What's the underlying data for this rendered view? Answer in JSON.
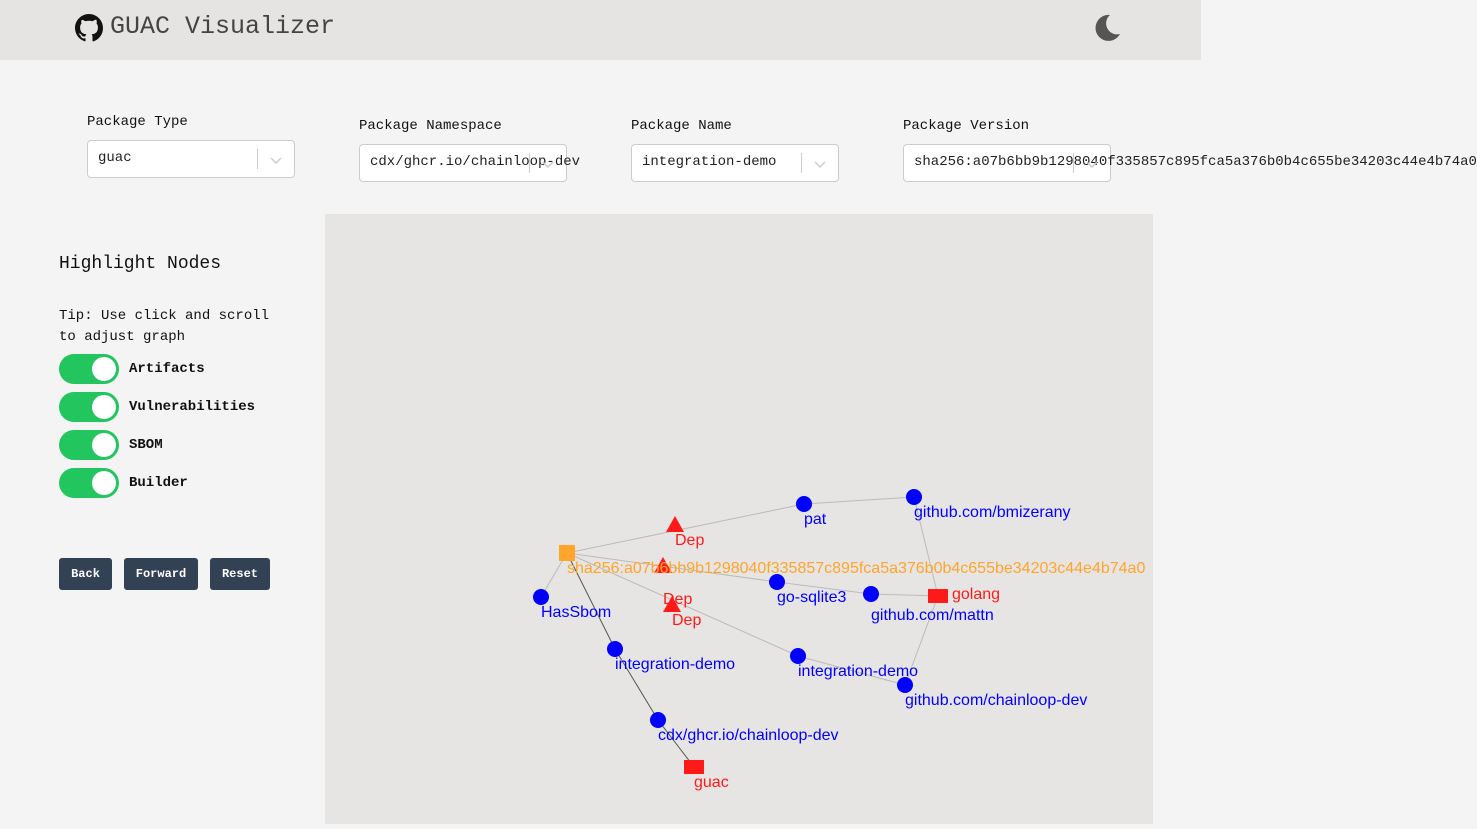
{
  "header": {
    "title": "GUAC Visualizer",
    "logo_icon": "github-icon",
    "theme_icon": "moon-icon"
  },
  "filters": [
    {
      "label": "Package Type",
      "value": "guac"
    },
    {
      "label": "Package Namespace",
      "value": "cdx/ghcr.io/chainloop-dev"
    },
    {
      "label": "Package Name",
      "value": "integration-demo"
    },
    {
      "label": "Package Version",
      "value": "sha256:a07b6bb9b1298040f335857c895fca5a376b0b4c655be34203c44e4b74a0"
    }
  ],
  "sidebar": {
    "title": "Highlight Nodes",
    "tip": "Tip: Use click and scroll to adjust graph",
    "toggles": [
      {
        "label": "Artifacts",
        "on": true
      },
      {
        "label": "Vulnerabilities",
        "on": true
      },
      {
        "label": "SBOM",
        "on": true
      },
      {
        "label": "Builder",
        "on": true
      }
    ],
    "buttons": {
      "back": "Back",
      "forward": "Forward",
      "reset": "Reset"
    }
  },
  "colors": {
    "toggle_on": "#22c55e",
    "package": "#0000ff",
    "dep": "#ff1a1a",
    "artifact": "#ffa52b",
    "button": "#334155"
  },
  "graph": {
    "nodes": [
      {
        "label": "sha256:a07b6bb9b1298040f335857c895fca5a376b0b4c655be34203c44e4b74a0",
        "shape": "square",
        "color": "#ffa52b"
      },
      {
        "label": "HasSbom",
        "shape": "circle",
        "color": "#0000ff"
      },
      {
        "label": "integration-demo",
        "shape": "circle",
        "color": "#0000ff"
      },
      {
        "label": "cdx/ghcr.io/chainloop-dev",
        "shape": "circle",
        "color": "#0000ff"
      },
      {
        "label": "guac",
        "shape": "rect",
        "color": "#ff1a1a"
      },
      {
        "label": "Dep",
        "shape": "triangle",
        "color": "#ff1a1a"
      },
      {
        "label": "pat",
        "shape": "circle",
        "color": "#0000ff"
      },
      {
        "label": "github.com/bmizerany",
        "shape": "circle",
        "color": "#0000ff"
      },
      {
        "label": "Dep",
        "shape": "triangle",
        "color": "#ff1a1a"
      },
      {
        "label": "go-sqlite3",
        "shape": "circle",
        "color": "#0000ff"
      },
      {
        "label": "github.com/mattn",
        "shape": "circle",
        "color": "#0000ff"
      },
      {
        "label": "golang",
        "shape": "rect",
        "color": "#ff1a1a"
      },
      {
        "label": "Dep",
        "shape": "triangle",
        "color": "#ff1a1a"
      },
      {
        "label": "integration-demo",
        "shape": "circle",
        "color": "#0000ff"
      },
      {
        "label": "github.com/chainloop-dev",
        "shape": "circle",
        "color": "#0000ff"
      }
    ],
    "edges": [
      [
        6,
        0
      ],
      [
        7,
        6
      ],
      [
        11,
        7
      ],
      [
        9,
        0
      ],
      [
        10,
        9
      ],
      [
        11,
        10
      ],
      [
        13,
        0
      ],
      [
        14,
        13
      ],
      [
        11,
        14
      ],
      [
        1,
        0
      ],
      [
        2,
        0
      ],
      [
        3,
        2
      ],
      [
        4,
        3
      ]
    ]
  }
}
